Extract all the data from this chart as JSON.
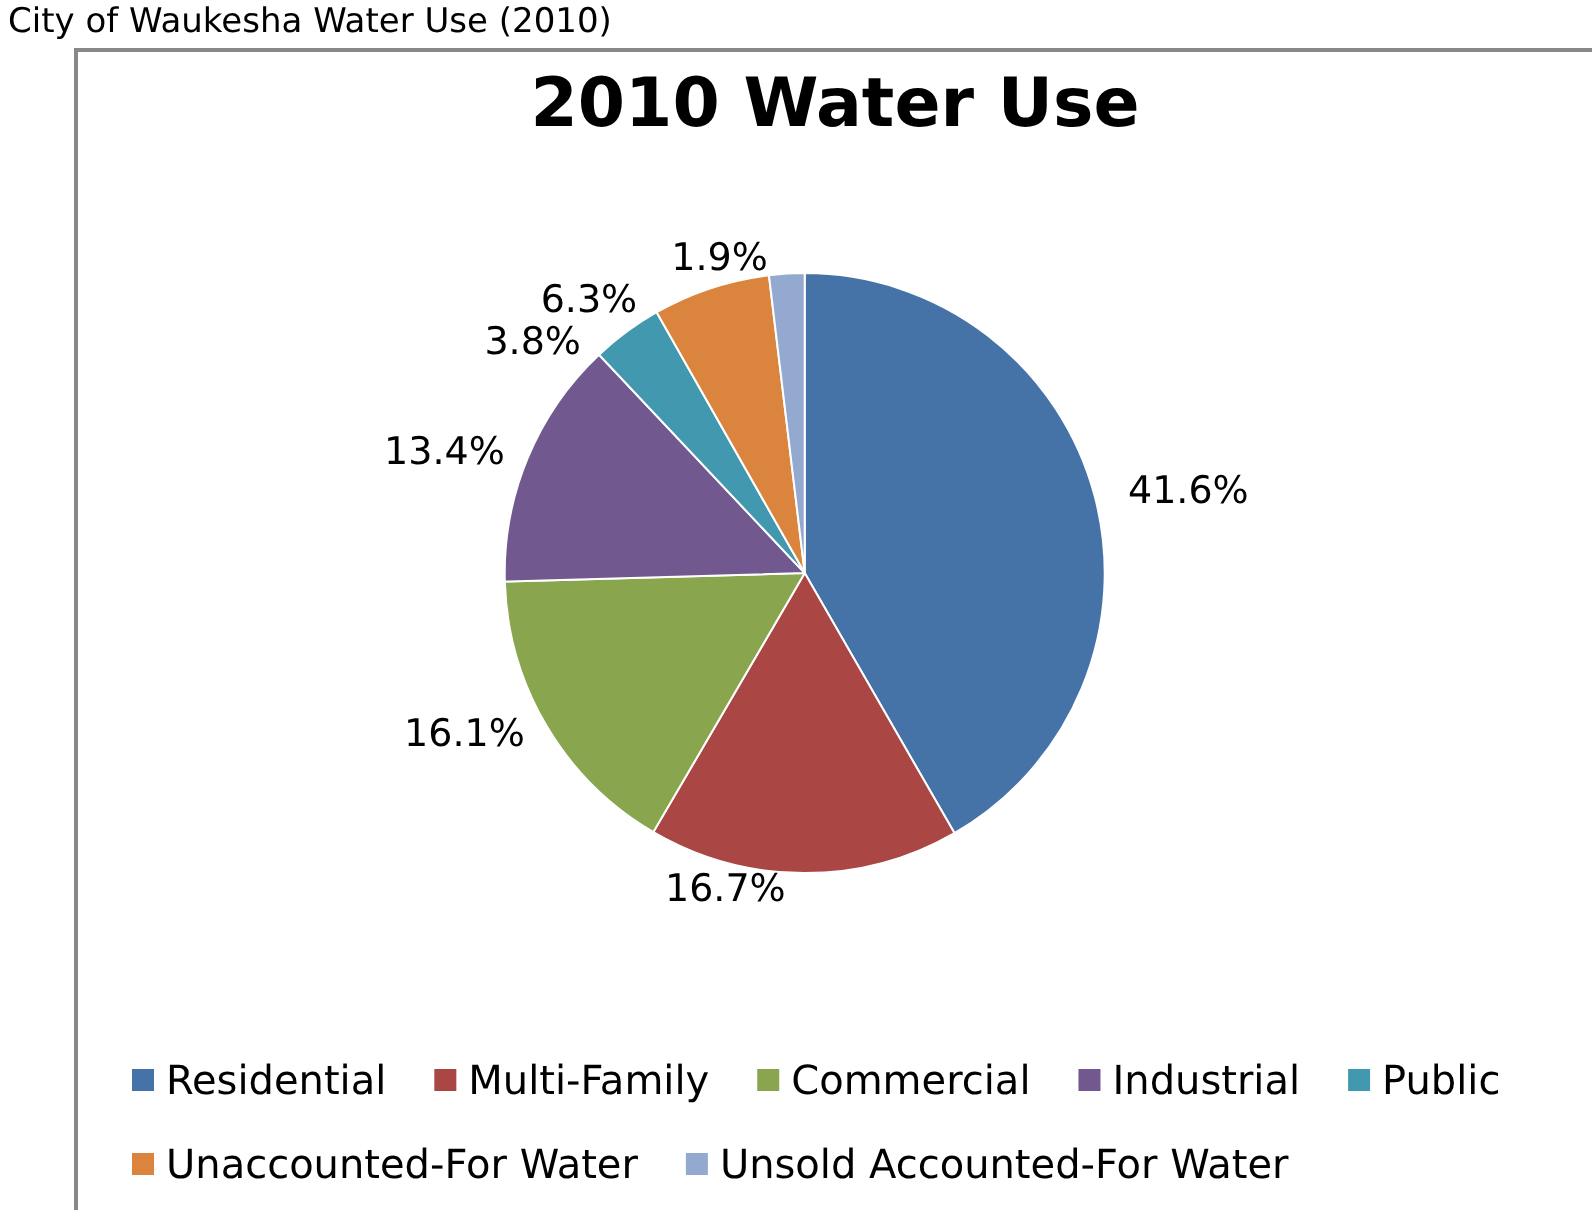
{
  "chart_data": {
    "type": "pie",
    "title": "2010 Water Use",
    "annotations": [
      "City of Waukesha Water Use (2010)"
    ],
    "categories": [
      "Residential",
      "Multi-Family",
      "Commercial",
      "Industrial",
      "Public",
      "Unaccounted-For Water",
      "Unsold Accounted-For Water"
    ],
    "values": [
      41.6,
      16.7,
      16.1,
      13.4,
      3.8,
      6.3,
      1.9
    ],
    "value_labels": [
      "41.6%",
      "16.7%",
      "16.1%",
      "13.4%",
      "3.8%",
      "6.3%",
      "1.9%"
    ],
    "colors": [
      "#4572a7",
      "#aa4643",
      "#89a54e",
      "#71588f",
      "#4198af",
      "#db843d",
      "#93a9cf"
    ],
    "legend": "bottom"
  }
}
